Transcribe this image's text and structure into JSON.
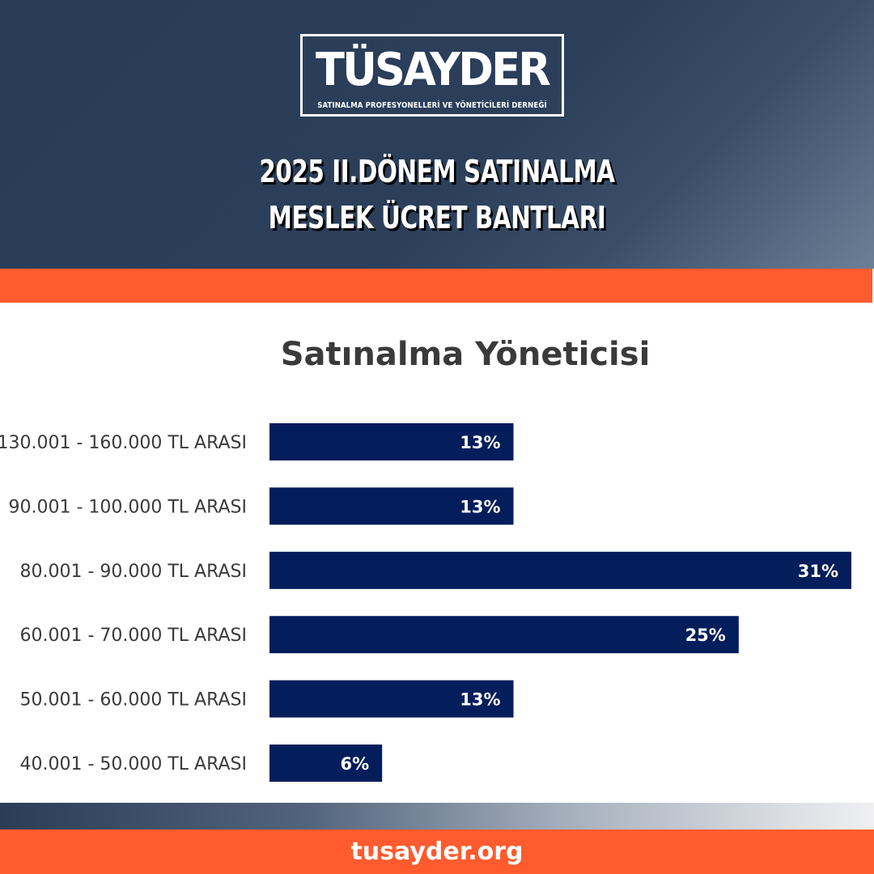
{
  "brand": {
    "logo_text": "TÜSAYDER",
    "logo_subtitle": "SATINALMA PROFESYONELLERİ VE YÖNETİCİLERİ DERNEĞİ"
  },
  "header": {
    "title_line1": "2025 II.DÖNEM SATINALMA",
    "title_line2": "MESLEK ÜCRET BANTLARI"
  },
  "colors": {
    "header_navy": "#2b3e5a",
    "accent_orange": "#ff5b2e",
    "bar_navy": "#041d5b",
    "label_gray": "#3a3a3a"
  },
  "chart_data": {
    "type": "bar",
    "orientation": "horizontal",
    "title": "Satınalma Yöneticisi",
    "categories": [
      "130.001 - 160.000 TL ARASI",
      "90.001 - 100.000 TL ARASI",
      "80.001 - 90.000 TL ARASI",
      "60.001 - 70.000 TL ARASI",
      "50.001 - 60.000 TL ARASI",
      "40.001 - 50.000 TL ARASI"
    ],
    "values": [
      13,
      13,
      31,
      25,
      13,
      6
    ],
    "value_labels": [
      "13%",
      "13%",
      "31%",
      "25%",
      "13%",
      "6%"
    ],
    "unit": "%",
    "xlim": [
      0,
      31
    ],
    "grid": false,
    "legend": "none"
  },
  "footer": {
    "website": "tusayder.org"
  }
}
